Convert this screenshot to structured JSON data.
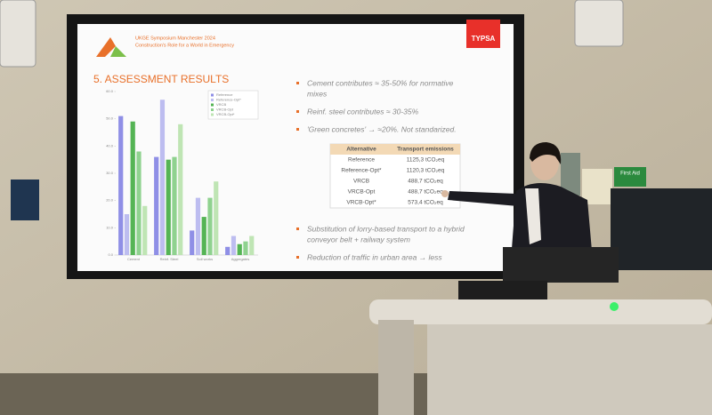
{
  "slide": {
    "event": "UKGE Symposium Manchester 2024",
    "subtitle": "Construction's Role for a World in Emergency",
    "brand": "TYPSA",
    "section_title": "5. ASSESSMENT RESULTS",
    "bullets": [
      [
        "Cement contributes ≈ 35-50% for normative",
        "mixes"
      ],
      [
        "Reinf. steel contributes ≈ 30-35%"
      ],
      [
        "'Green concretes' → ≈20%. Not standarized."
      ]
    ],
    "table": {
      "header": [
        "Alternative",
        "Transport emissions"
      ],
      "rows": [
        [
          "Reference",
          "1125,3 tCO₂eq"
        ],
        [
          "Reference-Opt*",
          "1120,3 tCO₂eq"
        ],
        [
          "VRCB",
          "488,7 tCO₂eq"
        ],
        [
          "VRCB-Opt",
          "488,7 tCO₂eq"
        ],
        [
          "VRCB-Opt*",
          "573,4 tCO₂eq"
        ]
      ]
    },
    "bullets_lower": [
      [
        "Substitution of lorry-based transport to a hybrid",
        "conveyor belt + railway system"
      ],
      [
        "Reduction of traffic in urban area → less"
      ]
    ]
  },
  "chart_data": {
    "type": "bar",
    "categories": [
      "Cement",
      "Reinf. Steel",
      "Soil works",
      "Aggregates"
    ],
    "series": [
      {
        "name": "Reference",
        "color": "#8f8fe6",
        "values": [
          51,
          36,
          9,
          3
        ]
      },
      {
        "name": "Reference-Opt*",
        "color": "#bdbdf0",
        "values": [
          15,
          57,
          21,
          7
        ]
      },
      {
        "name": "VRCB",
        "color": "#55b455",
        "values": [
          49,
          35,
          14,
          4
        ]
      },
      {
        "name": "VRCB-Opt",
        "color": "#8fd28f",
        "values": [
          38,
          36,
          21,
          5
        ]
      },
      {
        "name": "VRCB-Opt*",
        "color": "#bfe5b4",
        "values": [
          18,
          48,
          27,
          7
        ]
      }
    ],
    "ylim": [
      0,
      60
    ],
    "yticks": [
      {
        "value": 0,
        "label": "0.0"
      },
      {
        "value": 10,
        "label": "10.0"
      },
      {
        "value": 20,
        "label": "20.0"
      },
      {
        "value": 30,
        "label": "30.0"
      },
      {
        "value": 40,
        "label": "40.0"
      },
      {
        "value": 50,
        "label": "50.0"
      },
      {
        "value": 60,
        "label": "60.0"
      }
    ],
    "grid": false
  },
  "signs": {
    "first_aid": "First Aid"
  }
}
